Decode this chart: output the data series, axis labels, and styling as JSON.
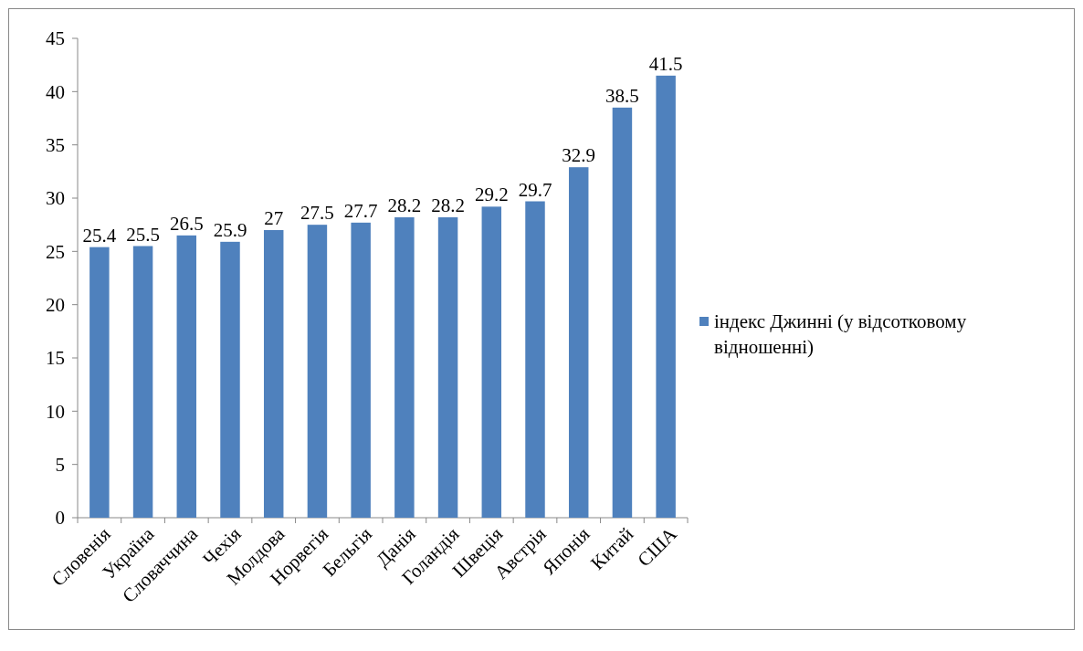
{
  "chart_data": {
    "type": "bar",
    "categories": [
      "Словенія",
      "Україна",
      "Словаччина",
      "Чехія",
      "Молдова",
      "Норвегія",
      "Бельгія",
      "Данія",
      "Голандія",
      "Швеція",
      "Австрія",
      "Японія",
      "Китай",
      "США"
    ],
    "series": [
      {
        "name": "індекс Джинні (у відсотковому відношенні)",
        "color": "#4f81bd",
        "values": [
          25.4,
          25.5,
          26.5,
          25.9,
          27,
          27.5,
          27.7,
          28.2,
          28.2,
          29.2,
          29.7,
          32.9,
          38.5,
          41.5
        ]
      }
    ],
    "ylim": [
      0,
      45
    ],
    "yticks": [
      0,
      5,
      10,
      15,
      20,
      25,
      30,
      35,
      40,
      45
    ],
    "data_labels": true,
    "legend": "right"
  }
}
